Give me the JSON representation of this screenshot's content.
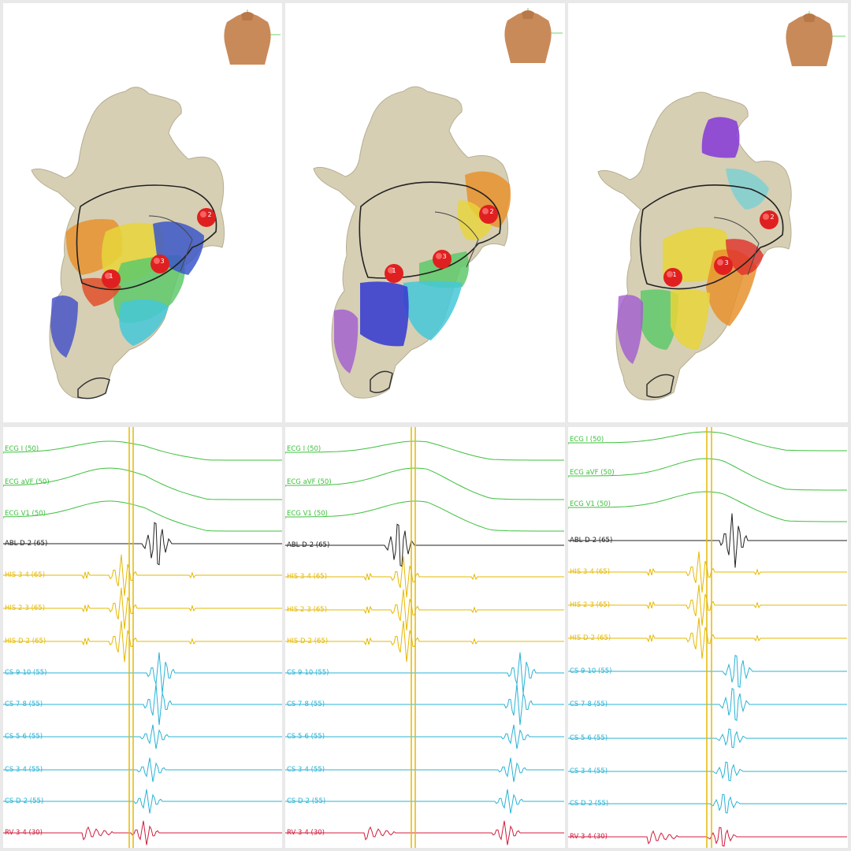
{
  "panels": [
    {
      "id": "map-1",
      "points": [
        "1",
        "2",
        "3"
      ],
      "channels": [
        {
          "label": "ECG I (50)",
          "color": "#3cc03c"
        },
        {
          "label": "ECG aVF (50)",
          "color": "#3cc03c"
        },
        {
          "label": "ECG V1 (50)",
          "color": "#3cc03c"
        },
        {
          "label": "ABL D-2 (65)",
          "color": "#222222"
        },
        {
          "label": "HIS 3-4 (65)",
          "color": "#e6b800"
        },
        {
          "label": "HIS 2-3 (65)",
          "color": "#e6b800"
        },
        {
          "label": "HIS D-2 (65)",
          "color": "#e6b800"
        },
        {
          "label": "CS 9-10 (55)",
          "color": "#29b3d6"
        },
        {
          "label": "CS 7-8 (55)",
          "color": "#29b3d6"
        },
        {
          "label": "CS 5-6 (55)",
          "color": "#29b3d6"
        },
        {
          "label": "CS 3-4 (55)",
          "color": "#29b3d6"
        },
        {
          "label": "CS D-2 (55)",
          "color": "#29b3d6"
        },
        {
          "label": "RV 3-4 (30)",
          "color": "#d01c3c"
        }
      ]
    },
    {
      "id": "map-2",
      "points": [
        "1",
        "2",
        "3"
      ],
      "channels": [
        {
          "label": "ECG I (50)",
          "color": "#3cc03c"
        },
        {
          "label": "ECG aVF (50)",
          "color": "#3cc03c"
        },
        {
          "label": "ECG V1 (50)",
          "color": "#3cc03c"
        },
        {
          "label": "ABL D-2 (65)",
          "color": "#222222"
        },
        {
          "label": "HIS 3-4 (65)",
          "color": "#e6b800"
        },
        {
          "label": "HIS 2-3 (65)",
          "color": "#e6b800"
        },
        {
          "label": "HIS D-2 (65)",
          "color": "#e6b800"
        },
        {
          "label": "CS 9-10 (55)",
          "color": "#29b3d6"
        },
        {
          "label": "CS 7-8 (55)",
          "color": "#29b3d6"
        },
        {
          "label": "CS 5-6 (55)",
          "color": "#29b3d6"
        },
        {
          "label": "CS 3-4 (55)",
          "color": "#29b3d6"
        },
        {
          "label": "CS D-2 (55)",
          "color": "#29b3d6"
        },
        {
          "label": "RV 3-4 (30)",
          "color": "#d01c3c"
        }
      ]
    },
    {
      "id": "map-3",
      "points": [
        "1",
        "2",
        "3"
      ],
      "channels": [
        {
          "label": "ECG I (50)",
          "color": "#3cc03c"
        },
        {
          "label": "ECG aVF (50)",
          "color": "#3cc03c"
        },
        {
          "label": "ECG V1 (50)",
          "color": "#3cc03c"
        },
        {
          "label": "ABL D-2 (65)",
          "color": "#222222"
        },
        {
          "label": "HIS 3-4 (65)",
          "color": "#e6b800"
        },
        {
          "label": "HIS 2-3 (65)",
          "color": "#e6b800"
        },
        {
          "label": "HIS D-2 (65)",
          "color": "#e6b800"
        },
        {
          "label": "CS 9-10 (55)",
          "color": "#29b3d6"
        },
        {
          "label": "CS 7-8 (55)",
          "color": "#29b3d6"
        },
        {
          "label": "CS 5-6 (55)",
          "color": "#29b3d6"
        },
        {
          "label": "CS 3-4 (55)",
          "color": "#29b3d6"
        },
        {
          "label": "CS D-2 (55)",
          "color": "#29b3d6"
        },
        {
          "label": "RV 3-4 (30)",
          "color": "#d01c3c"
        }
      ]
    }
  ],
  "colors": {
    "anatomy": "#d6cfb4",
    "ablation_point": "#e02020",
    "marker_line": "#e6b800",
    "torso": "#c98a5a"
  }
}
